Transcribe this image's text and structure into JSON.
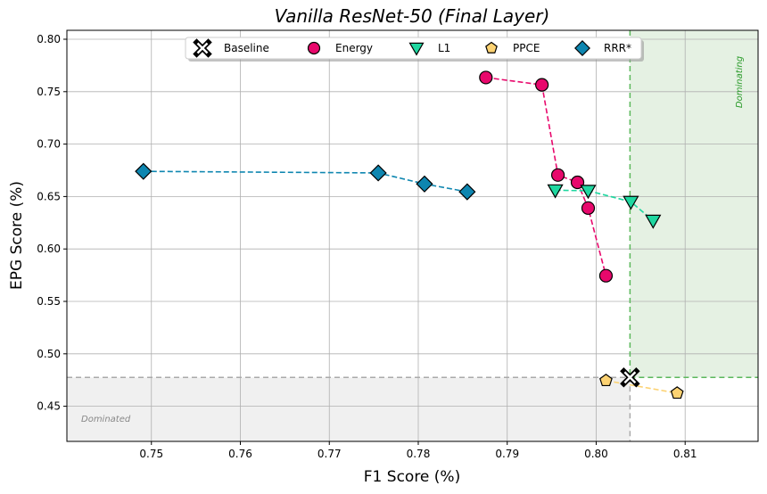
{
  "chart_data": {
    "type": "scatter",
    "title": "Vanilla ResNet-50 (Final Layer)",
    "xlabel": "F1 Score (%)",
    "ylabel": "EPG Score (%)",
    "xlim": [
      0.7405,
      0.8182
    ],
    "ylim": [
      0.4165,
      0.8085
    ],
    "xticks": [
      "0.75",
      "0.76",
      "0.77",
      "0.78",
      "0.79",
      "0.80",
      "0.81"
    ],
    "yticks": [
      "0.45",
      "0.50",
      "0.55",
      "0.60",
      "0.65",
      "0.70",
      "0.75",
      "0.80"
    ],
    "grid": true,
    "legend_position": "top-center",
    "baseline": {
      "x": 0.8038,
      "y": 0.4775
    },
    "regions": {
      "dominated_label": "Dominated",
      "dominating_label": "Dominating",
      "dominated_color": "#f0f0f0",
      "dominating_color": "#e5f1e3",
      "dominating_line_color": "#5cb85c"
    },
    "series": [
      {
        "name": "Baseline",
        "marker": "x-cross",
        "color": "#ffffff",
        "edge": "#000000",
        "points": [
          [
            0.8038,
            0.4775
          ]
        ]
      },
      {
        "name": "Energy",
        "marker": "circle",
        "color": "#e8086c",
        "edge": "#000000",
        "points": [
          [
            0.7876,
            0.7635
          ],
          [
            0.7939,
            0.7565
          ],
          [
            0.7957,
            0.6705
          ],
          [
            0.7979,
            0.6635
          ],
          [
            0.7991,
            0.639
          ],
          [
            0.8011,
            0.5745
          ]
        ]
      },
      {
        "name": "L1",
        "marker": "triangle-down",
        "color": "#1fd7a0",
        "edge": "#000000",
        "points": [
          [
            0.7954,
            0.656
          ],
          [
            0.7991,
            0.6555
          ],
          [
            0.8039,
            0.645
          ],
          [
            0.8064,
            0.627
          ]
        ]
      },
      {
        "name": "PPCE",
        "marker": "pentagon",
        "color": "#fcd272",
        "edge": "#000000",
        "points": [
          [
            0.8011,
            0.4745
          ],
          [
            0.8091,
            0.4625
          ]
        ]
      },
      {
        "name": "RRR*",
        "marker": "diamond",
        "color": "#0e86b0",
        "edge": "#000000",
        "points": [
          [
            0.7491,
            0.674
          ],
          [
            0.7755,
            0.6725
          ],
          [
            0.7807,
            0.662
          ],
          [
            0.7855,
            0.6545
          ]
        ]
      }
    ]
  }
}
